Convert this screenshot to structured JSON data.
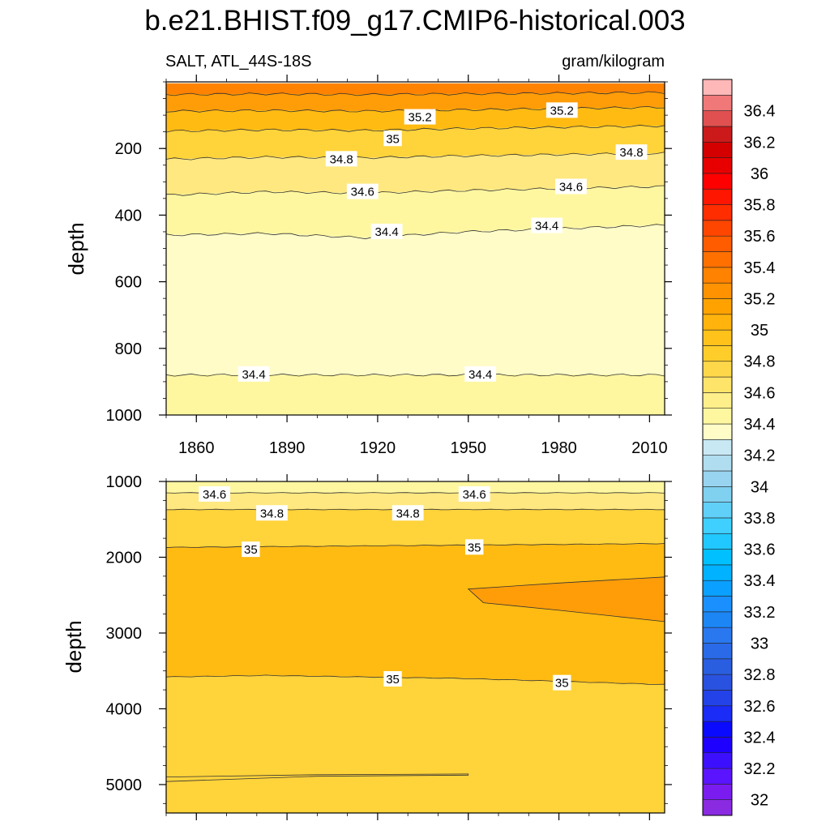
{
  "title": "b.e21.BHIST.f09_g17.CMIP6-historical.003",
  "colors": {
    "c342": "#fffcc8",
    "c344": "#fff7a0",
    "c346": "#ffe880",
    "c348": "#ffd33a",
    "c350": "#ffbb12",
    "c352": "#ff9d08",
    "c354": "#ff8200",
    "contour": "#333333"
  },
  "chart_data": [
    {
      "type": "contour",
      "name": "upper-panel",
      "left_label": "SALT, ATL_44S-18S",
      "right_label": "gram/kilogram",
      "ylabel": "depth",
      "ylim": [
        1000,
        0
      ],
      "xlim": [
        1850,
        2015
      ],
      "x_ticks": [
        1860,
        1890,
        1920,
        1950,
        1980,
        2010
      ],
      "y_ticks": [
        200,
        400,
        600,
        800,
        1000
      ],
      "bands": [
        {
          "from": 35.4,
          "to": 35.6,
          "color": "c354",
          "top_depth": [
            5,
            5,
            5,
            5,
            5,
            5
          ],
          "bottom_depth": [
            38,
            36,
            38,
            36,
            34,
            32
          ]
        },
        {
          "from": 35.2,
          "to": 35.4,
          "color": "c352",
          "top_depth": [
            38,
            36,
            38,
            36,
            34,
            32
          ],
          "bottom_depth": [
            88,
            86,
            88,
            84,
            80,
            76
          ]
        },
        {
          "from": 35.0,
          "to": 35.2,
          "color": "c350",
          "top_depth": [
            88,
            86,
            88,
            84,
            80,
            76
          ],
          "bottom_depth": [
            148,
            144,
            146,
            140,
            136,
            132
          ]
        },
        {
          "from": 34.8,
          "to": 35.0,
          "color": "c348",
          "top_depth": [
            148,
            144,
            146,
            140,
            136,
            132
          ],
          "bottom_depth": [
            232,
            226,
            228,
            222,
            218,
            214
          ]
        },
        {
          "from": 34.6,
          "to": 34.8,
          "color": "c346",
          "top_depth": [
            232,
            226,
            228,
            222,
            218,
            214
          ],
          "bottom_depth": [
            340,
            330,
            334,
            326,
            320,
            314
          ]
        },
        {
          "from": 34.4,
          "to": 34.6,
          "color": "c344",
          "top_depth": [
            340,
            330,
            334,
            326,
            320,
            314
          ],
          "bottom_depth": [
            460,
            455,
            468,
            450,
            440,
            430
          ]
        },
        {
          "from": 34.2,
          "to": 34.4,
          "color": "c342",
          "top_depth": [
            460,
            455,
            468,
            450,
            440,
            430
          ],
          "bottom_depth": [
            880,
            880,
            880,
            880,
            880,
            880
          ]
        },
        {
          "from": 34.4,
          "to": 34.6,
          "color": "c344",
          "top_depth": [
            880,
            880,
            880,
            880,
            880,
            880
          ],
          "bottom_depth": [
            1000,
            1000,
            1000,
            1000,
            1000,
            1000
          ]
        }
      ],
      "contours": [
        {
          "value": 35.4,
          "depth": [
            38,
            36,
            38,
            36,
            34,
            32
          ]
        },
        {
          "value": 35.2,
          "depth": [
            88,
            86,
            88,
            84,
            80,
            76
          ]
        },
        {
          "value": 35.0,
          "depth": [
            148,
            144,
            146,
            140,
            136,
            132
          ]
        },
        {
          "value": 34.8,
          "depth": [
            232,
            226,
            228,
            222,
            218,
            214
          ]
        },
        {
          "value": 34.6,
          "depth": [
            340,
            330,
            334,
            326,
            320,
            314
          ]
        },
        {
          "value": 34.4,
          "depth": [
            460,
            455,
            468,
            450,
            440,
            430
          ]
        },
        {
          "value": 34.4,
          "depth": [
            880,
            880,
            880,
            880,
            880,
            880
          ]
        }
      ],
      "contour_labels": [
        {
          "text": "35.2",
          "year": 1934,
          "depth": 106
        },
        {
          "text": "35.2",
          "year": 1981,
          "depth": 86
        },
        {
          "text": "35",
          "year": 1925,
          "depth": 171
        },
        {
          "text": "34.8",
          "year": 1908,
          "depth": 232
        },
        {
          "text": "34.8",
          "year": 2004,
          "depth": 212
        },
        {
          "text": "34.6",
          "year": 1915,
          "depth": 330
        },
        {
          "text": "34.6",
          "year": 1984,
          "depth": 315
        },
        {
          "text": "34.4",
          "year": 1923,
          "depth": 450
        },
        {
          "text": "34.4",
          "year": 1976,
          "depth": 432
        },
        {
          "text": "34.4",
          "year": 1879,
          "depth": 878
        },
        {
          "text": "34.4",
          "year": 1954,
          "depth": 878
        }
      ]
    },
    {
      "type": "contour",
      "name": "lower-panel",
      "ylabel": "depth",
      "ylim": [
        5375,
        1000
      ],
      "xlim": [
        1850,
        2015
      ],
      "y_ticks": [
        1000,
        2000,
        3000,
        4000,
        5000
      ],
      "bands": [
        {
          "from": 34.4,
          "to": 34.6,
          "color": "c344",
          "top_depth": [
            1000,
            1000,
            1000,
            1000,
            1000,
            1000
          ],
          "bottom_depth": [
            1150,
            1150,
            1150,
            1150,
            1150,
            1150
          ]
        },
        {
          "from": 34.6,
          "to": 34.8,
          "color": "c346",
          "top_depth": [
            1150,
            1150,
            1150,
            1150,
            1150,
            1150
          ],
          "bottom_depth": [
            1370,
            1370,
            1370,
            1370,
            1370,
            1370
          ]
        },
        {
          "from": 34.8,
          "to": 35.0,
          "color": "c348",
          "top_depth": [
            1370,
            1370,
            1370,
            1370,
            1370,
            1370
          ],
          "bottom_depth": [
            1870,
            1860,
            1850,
            1840,
            1830,
            1820
          ]
        },
        {
          "from": 35.0,
          "to": 35.2,
          "color": "c350",
          "top_depth": [
            1870,
            1860,
            1850,
            1840,
            1830,
            1820
          ],
          "bottom_depth": [
            3580,
            3560,
            3580,
            3600,
            3640,
            3680
          ]
        },
        {
          "from": 34.8,
          "to": 35.0,
          "color": "c348",
          "top_depth": [
            3580,
            3560,
            3580,
            3600,
            3640,
            3680
          ],
          "bottom_depth": [
            5375,
            5375,
            5375,
            5375,
            5375,
            5375
          ]
        }
      ],
      "patches": [
        {
          "from": 35.2,
          "to": 35.4,
          "color": "c352",
          "polygon": [
            [
              1950,
              2420
            ],
            [
              1980,
              2340
            ],
            [
              2015,
              2260
            ],
            [
              2015,
              2850
            ],
            [
              1980,
              2700
            ],
            [
              1955,
              2600
            ],
            [
              1950,
              2420
            ]
          ]
        },
        {
          "from": 34.8,
          "to": 35.0,
          "color": "c348",
          "polygon": [
            [
              1850,
              4900
            ],
            [
              1900,
              4870
            ],
            [
              1950,
              4860
            ],
            [
              1950,
              4875
            ],
            [
              1900,
              4890
            ],
            [
              1850,
              4960
            ]
          ]
        }
      ],
      "contours": [
        {
          "value": 34.6,
          "depth": [
            1150,
            1150,
            1150,
            1150,
            1150,
            1150
          ]
        },
        {
          "value": 34.8,
          "depth": [
            1370,
            1370,
            1370,
            1370,
            1370,
            1370
          ]
        },
        {
          "value": 35.0,
          "depth": [
            1870,
            1860,
            1850,
            1840,
            1830,
            1820
          ]
        },
        {
          "value": 35.0,
          "depth": [
            3580,
            3560,
            3580,
            3600,
            3640,
            3680
          ]
        }
      ],
      "contour_labels": [
        {
          "text": "34.6",
          "year": 1866,
          "depth": 1170
        },
        {
          "text": "34.6",
          "year": 1952,
          "depth": 1170
        },
        {
          "text": "34.8",
          "year": 1885,
          "depth": 1420
        },
        {
          "text": "34.8",
          "year": 1930,
          "depth": 1420
        },
        {
          "text": "35",
          "year": 1878,
          "depth": 1900
        },
        {
          "text": "35",
          "year": 1952,
          "depth": 1870
        },
        {
          "text": "35",
          "year": 1925,
          "depth": 3610
        },
        {
          "text": "35",
          "year": 1981,
          "depth": 3660
        }
      ]
    },
    {
      "type": "colorbar",
      "name": "colorbar",
      "levels": [
        32,
        32.1,
        32.2,
        32.3,
        32.4,
        32.5,
        32.6,
        32.7,
        32.8,
        32.9,
        33,
        33.1,
        33.2,
        33.3,
        33.4,
        33.5,
        33.6,
        33.7,
        33.8,
        33.9,
        34,
        34.1,
        34.2,
        34.3,
        34.4,
        34.5,
        34.6,
        34.7,
        34.8,
        34.9,
        35,
        35.1,
        35.2,
        35.3,
        35.4,
        35.5,
        35.6,
        35.7,
        35.8,
        35.9,
        36,
        36.1,
        36.2,
        36.3,
        36.4,
        36.5
      ],
      "tick_labels": [
        "32",
        "32.2",
        "32.4",
        "32.6",
        "32.8",
        "33",
        "33.2",
        "33.4",
        "33.6",
        "33.8",
        "34",
        "34.2",
        "34.4",
        "34.6",
        "34.8",
        "35",
        "35.2",
        "35.4",
        "35.6",
        "35.8",
        "36",
        "36.2",
        "36.4"
      ],
      "box_colors": [
        "#8a2be2",
        "#7a1cf0",
        "#5a14ff",
        "#3c10ff",
        "#1e00ff",
        "#0a0aff",
        "#1a2cf5",
        "#2342e8",
        "#2a52e0",
        "#2a5ee0",
        "#2a6ae8",
        "#2a78f0",
        "#1c86f5",
        "#1a90ff",
        "#0aa0ff",
        "#00b2ff",
        "#00c0ff",
        "#20c8ff",
        "#40d0ff",
        "#60d0f8",
        "#80d0f0",
        "#98d4f0",
        "#b0ddf0",
        "#c8e8f4",
        "#fffcc8",
        "#fff7a0",
        "#ffef8a",
        "#ffe46a",
        "#ffd84a",
        "#ffcd2a",
        "#ffc21a",
        "#ffb30c",
        "#ffa200",
        "#ff9200",
        "#ff8200",
        "#ff7000",
        "#ff5c00",
        "#ff4600",
        "#ff2d00",
        "#ff1600",
        "#ff0000",
        "#e80000",
        "#d40000",
        "#cc1a1a",
        "#e05050",
        "#f07878",
        "#ffb8b8"
      ]
    }
  ]
}
